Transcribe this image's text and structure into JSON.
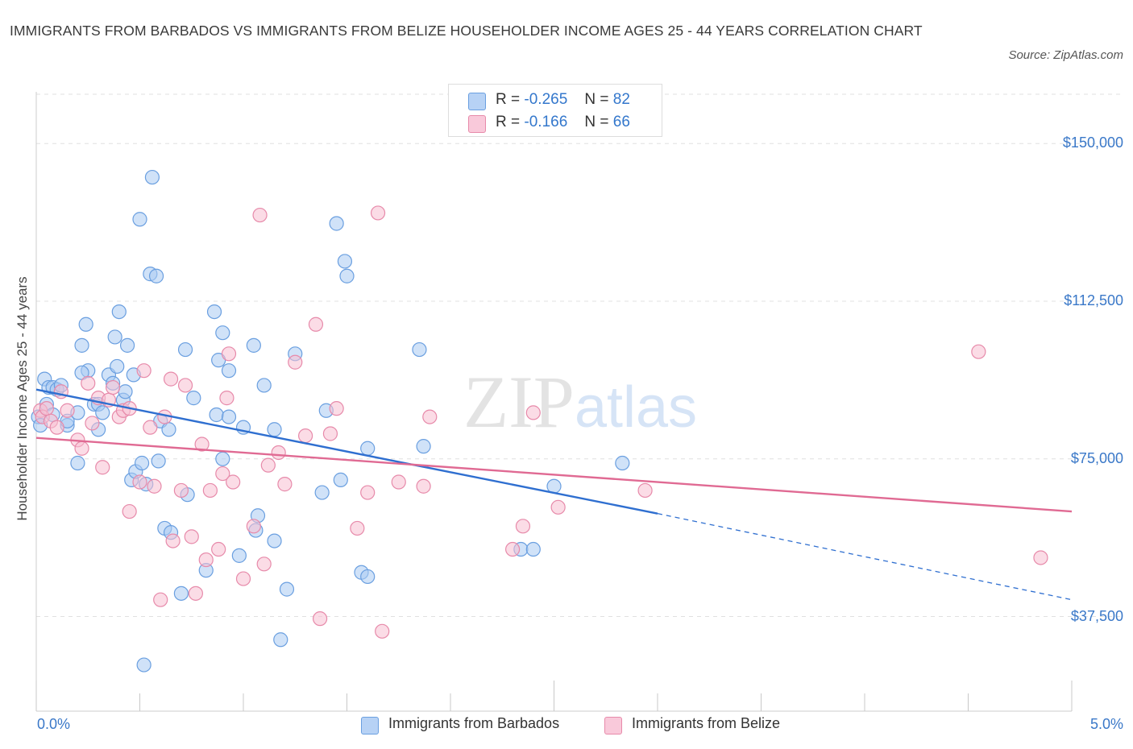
{
  "chart_data": {
    "type": "scatter",
    "title": "IMMIGRANTS FROM BARBADOS VS IMMIGRANTS FROM BELIZE HOUSEHOLDER INCOME AGES 25 - 44 YEARS CORRELATION CHART",
    "source": "Source: ZipAtlas.com",
    "ylabel": "Householder Income Ages 25 - 44 years",
    "xlim": [
      0,
      5
    ],
    "ylim": [
      15000,
      165000
    ],
    "x_tick_labels": [
      "0.0%",
      "5.0%"
    ],
    "y_ticks": [
      {
        "value": 150000,
        "label": "$150,000"
      },
      {
        "value": 112500,
        "label": "$112,500"
      },
      {
        "value": 75000,
        "label": "$75,000"
      },
      {
        "value": 37500,
        "label": "$37,500"
      }
    ],
    "legend": {
      "rows": [
        {
          "r_label": "R =",
          "r_value": "-0.265",
          "n_label": "N =",
          "n_value": "82"
        },
        {
          "r_label": "R =",
          "r_value": "-0.166",
          "n_label": "N =",
          "n_value": "66"
        }
      ]
    },
    "watermark": "ZIPatlas",
    "series": [
      {
        "name": "Immigrants from Barbados",
        "color": "#6a9fe0",
        "fill": "#aacbf3",
        "trend": {
          "x": [
            0.0,
            3.0
          ],
          "y": [
            91500,
            62000
          ],
          "dashed_to": [
            5.0,
            41500
          ],
          "color": "#2f6fd0"
        },
        "points": [
          [
            0.01,
            85000
          ],
          [
            0.02,
            83000
          ],
          [
            0.04,
            94000
          ],
          [
            0.05,
            88000
          ],
          [
            0.06,
            92000
          ],
          [
            0.08,
            85500
          ],
          [
            0.08,
            92000
          ],
          [
            0.1,
            91500
          ],
          [
            0.12,
            92500
          ],
          [
            0.15,
            83000
          ],
          [
            0.15,
            84000
          ],
          [
            0.2,
            74000
          ],
          [
            0.2,
            86000
          ],
          [
            0.22,
            102000
          ],
          [
            0.24,
            107000
          ],
          [
            0.25,
            96000
          ],
          [
            0.28,
            88000
          ],
          [
            0.3,
            88000
          ],
          [
            0.3,
            82000
          ],
          [
            0.32,
            86000
          ],
          [
            0.35,
            95000
          ],
          [
            0.37,
            93000
          ],
          [
            0.38,
            104000
          ],
          [
            0.39,
            97000
          ],
          [
            0.4,
            110000
          ],
          [
            0.42,
            89000
          ],
          [
            0.43,
            91000
          ],
          [
            0.44,
            102000
          ],
          [
            0.46,
            70000
          ],
          [
            0.47,
            95000
          ],
          [
            0.48,
            72000
          ],
          [
            0.5,
            132000
          ],
          [
            0.51,
            74000
          ],
          [
            0.52,
            26000
          ],
          [
            0.53,
            69000
          ],
          [
            0.55,
            119000
          ],
          [
            0.56,
            142000
          ],
          [
            0.58,
            118500
          ],
          [
            0.59,
            74500
          ],
          [
            0.6,
            84000
          ],
          [
            0.62,
            58500
          ],
          [
            0.64,
            82000
          ],
          [
            0.65,
            57500
          ],
          [
            0.7,
            43000
          ],
          [
            0.72,
            101000
          ],
          [
            0.73,
            66500
          ],
          [
            0.76,
            89500
          ],
          [
            0.82,
            48500
          ],
          [
            0.86,
            110000
          ],
          [
            0.87,
            85500
          ],
          [
            0.88,
            98500
          ],
          [
            0.9,
            75000
          ],
          [
            0.9,
            105000
          ],
          [
            0.93,
            85000
          ],
          [
            0.93,
            96000
          ],
          [
            0.98,
            52000
          ],
          [
            1.0,
            82500
          ],
          [
            1.05,
            102000
          ],
          [
            1.06,
            58000
          ],
          [
            1.07,
            61500
          ],
          [
            1.1,
            92500
          ],
          [
            1.15,
            55500
          ],
          [
            1.15,
            82000
          ],
          [
            1.18,
            32000
          ],
          [
            1.21,
            44000
          ],
          [
            1.25,
            100000
          ],
          [
            1.38,
            67000
          ],
          [
            1.4,
            86500
          ],
          [
            1.45,
            131000
          ],
          [
            1.47,
            70000
          ],
          [
            1.49,
            122000
          ],
          [
            1.5,
            118500
          ],
          [
            1.57,
            48000
          ],
          [
            1.6,
            47000
          ],
          [
            1.6,
            77500
          ],
          [
            1.85,
            101000
          ],
          [
            1.87,
            78000
          ],
          [
            2.34,
            53500
          ],
          [
            2.4,
            53500
          ],
          [
            2.5,
            68500
          ],
          [
            2.83,
            74000
          ],
          [
            0.22,
            95500
          ]
        ]
      },
      {
        "name": "Immigrants from Belize",
        "color": "#e78aaa",
        "fill": "#f7bfd2",
        "trend": {
          "x": [
            0.0,
            5.0
          ],
          "y": [
            80000,
            62500
          ],
          "color": "#e06a93"
        },
        "points": [
          [
            0.02,
            86500
          ],
          [
            0.03,
            85000
          ],
          [
            0.05,
            87000
          ],
          [
            0.07,
            84000
          ],
          [
            0.1,
            82500
          ],
          [
            0.12,
            91000
          ],
          [
            0.15,
            86500
          ],
          [
            0.2,
            79500
          ],
          [
            0.22,
            77500
          ],
          [
            0.25,
            93000
          ],
          [
            0.27,
            83500
          ],
          [
            0.3,
            89500
          ],
          [
            0.32,
            73000
          ],
          [
            0.35,
            89000
          ],
          [
            0.37,
            92000
          ],
          [
            0.4,
            85000
          ],
          [
            0.42,
            86500
          ],
          [
            0.45,
            87000
          ],
          [
            0.45,
            62500
          ],
          [
            0.5,
            69500
          ],
          [
            0.52,
            96000
          ],
          [
            0.55,
            82500
          ],
          [
            0.57,
            68500
          ],
          [
            0.6,
            41500
          ],
          [
            0.62,
            85000
          ],
          [
            0.65,
            94000
          ],
          [
            0.66,
            55500
          ],
          [
            0.7,
            67500
          ],
          [
            0.72,
            92500
          ],
          [
            0.75,
            56500
          ],
          [
            0.77,
            43000
          ],
          [
            0.8,
            78500
          ],
          [
            0.82,
            51000
          ],
          [
            0.84,
            67500
          ],
          [
            0.88,
            53500
          ],
          [
            0.9,
            71500
          ],
          [
            0.92,
            89500
          ],
          [
            0.93,
            100000
          ],
          [
            0.95,
            69500
          ],
          [
            1.0,
            46500
          ],
          [
            1.05,
            59000
          ],
          [
            1.08,
            133000
          ],
          [
            1.1,
            50000
          ],
          [
            1.12,
            73500
          ],
          [
            1.17,
            76500
          ],
          [
            1.2,
            69000
          ],
          [
            1.25,
            98000
          ],
          [
            1.3,
            80500
          ],
          [
            1.35,
            107000
          ],
          [
            1.37,
            37000
          ],
          [
            1.42,
            81000
          ],
          [
            1.45,
            87000
          ],
          [
            1.55,
            58500
          ],
          [
            1.6,
            67000
          ],
          [
            1.65,
            133500
          ],
          [
            1.67,
            34000
          ],
          [
            1.75,
            69500
          ],
          [
            1.87,
            68500
          ],
          [
            1.9,
            85000
          ],
          [
            2.3,
            53500
          ],
          [
            2.35,
            59000
          ],
          [
            2.4,
            86000
          ],
          [
            2.52,
            63500
          ],
          [
            2.94,
            67500
          ],
          [
            4.55,
            100500
          ],
          [
            4.85,
            51500
          ]
        ]
      }
    ]
  }
}
